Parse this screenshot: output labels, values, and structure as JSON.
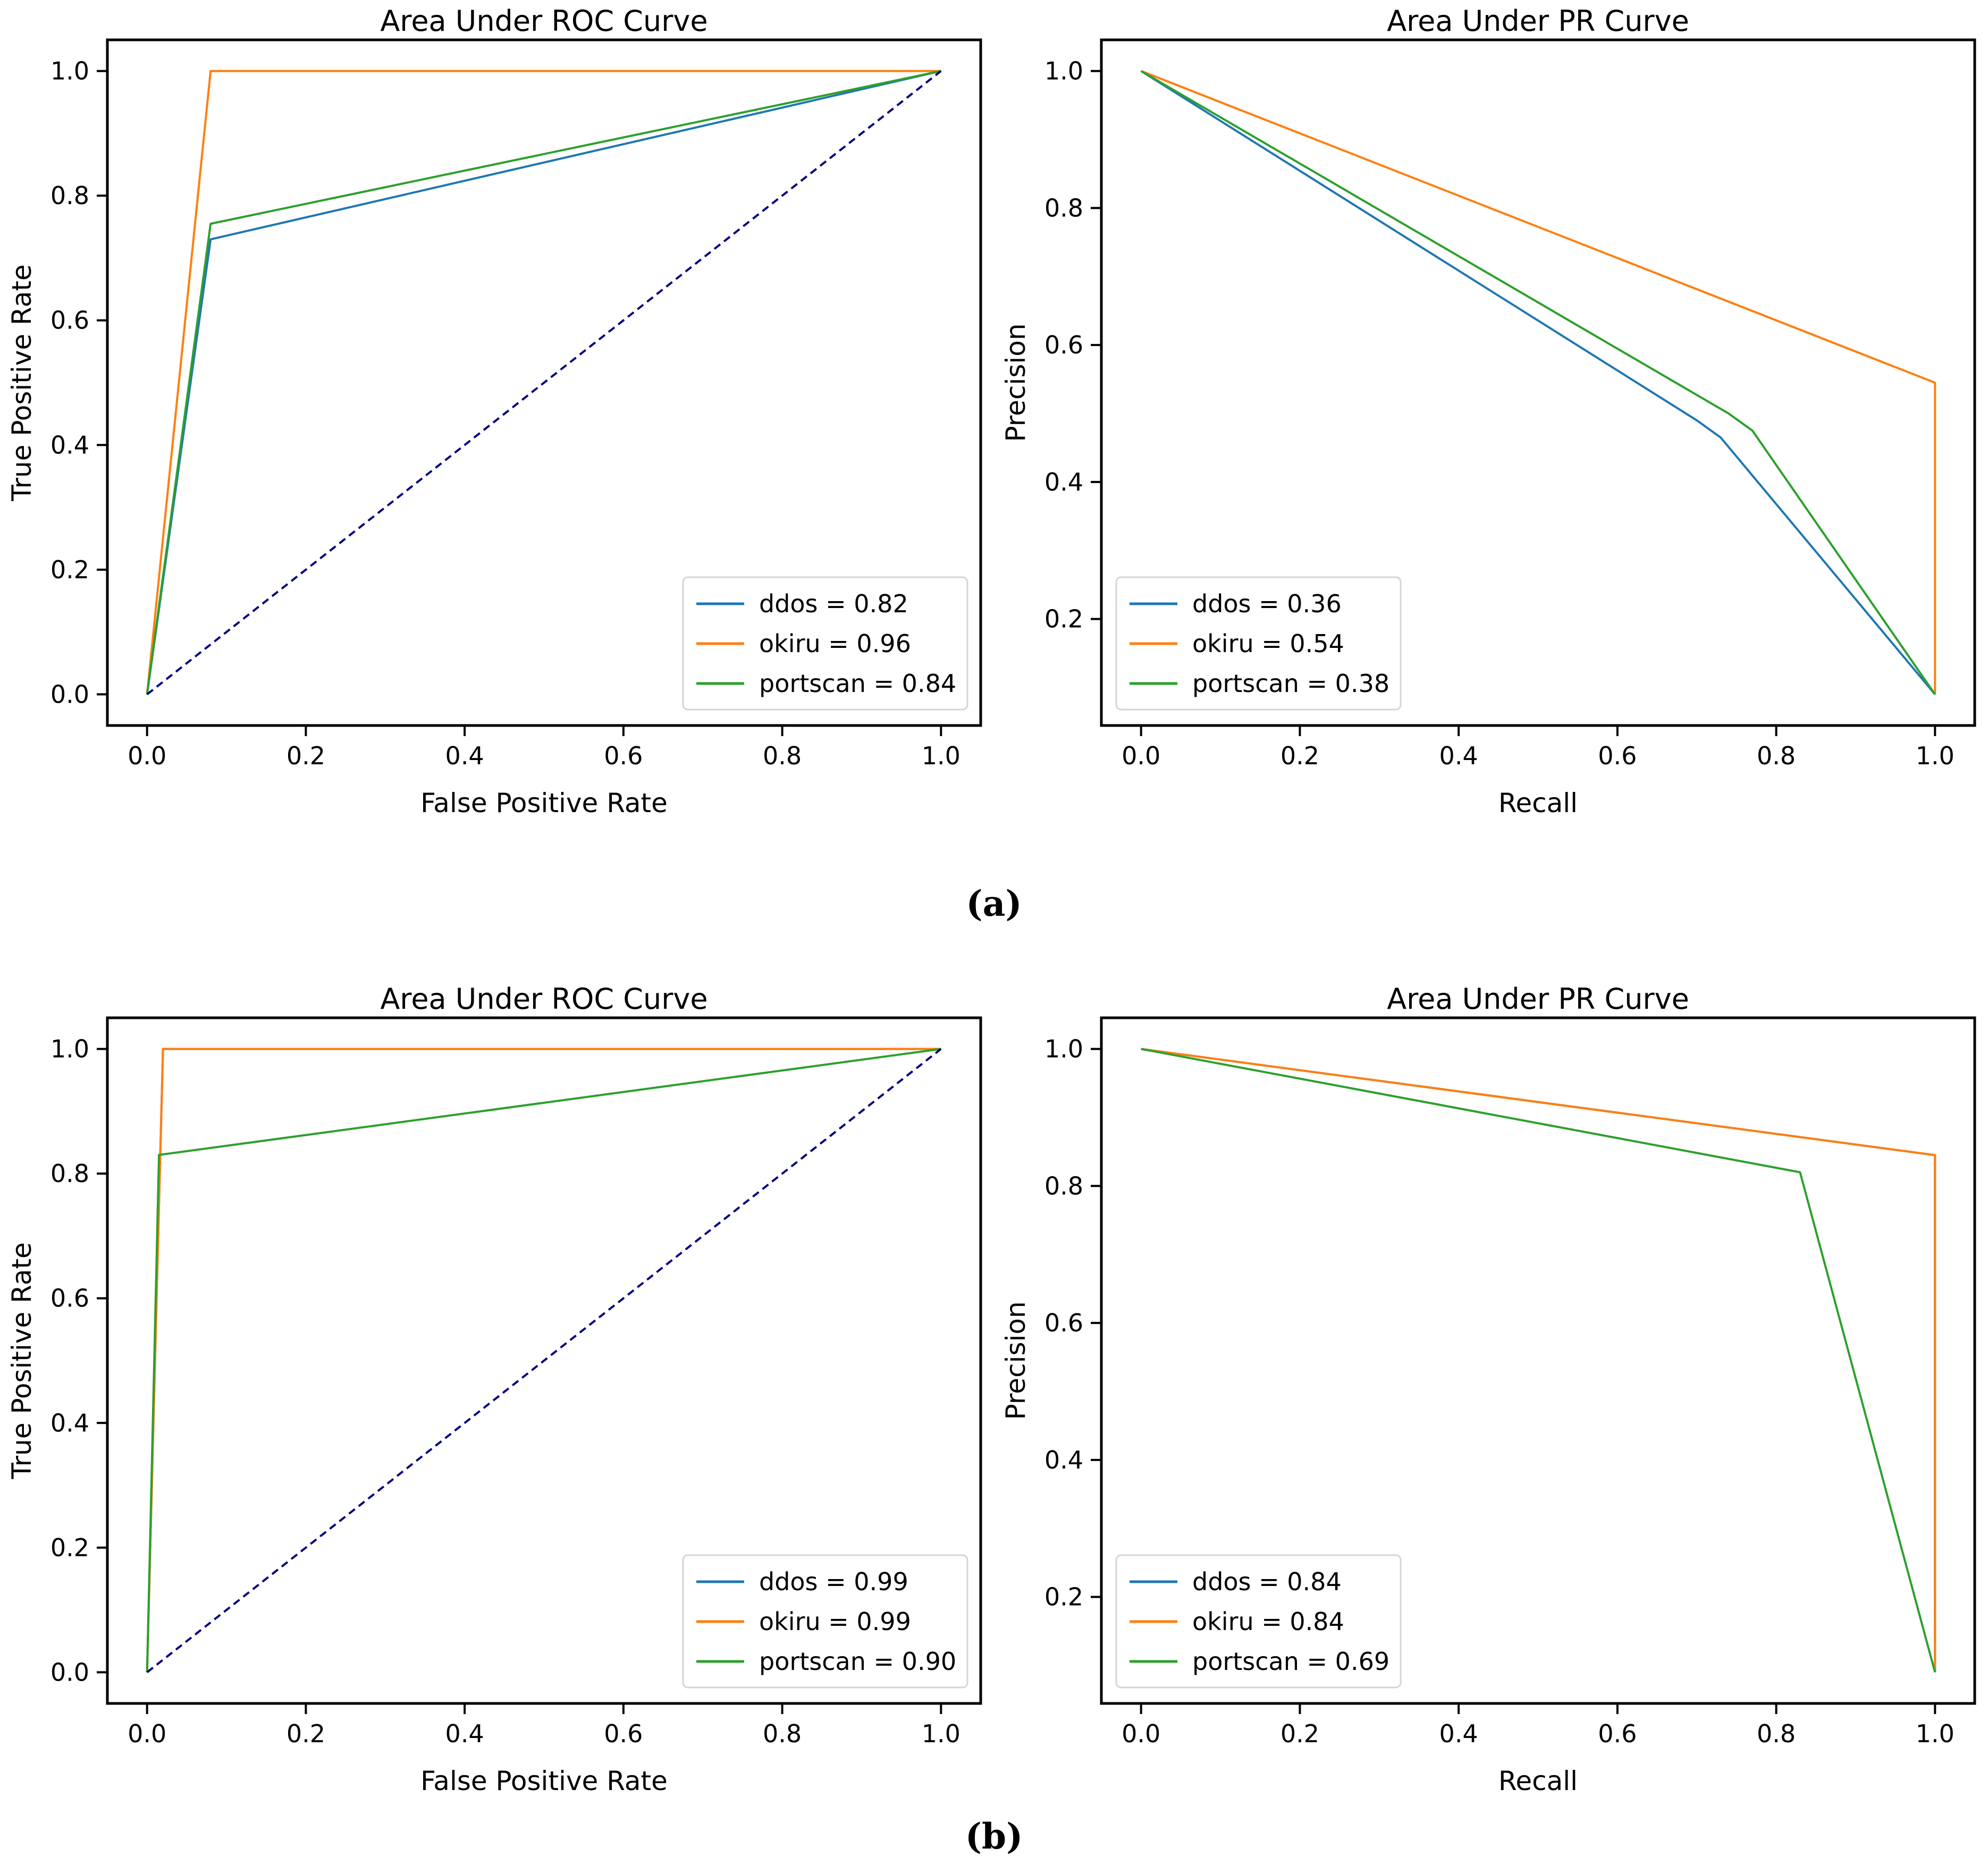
{
  "figure": {
    "panel_a_label": "(a)",
    "panel_b_label": "(b)",
    "colors": {
      "ddos": "#1f77b4",
      "okiru": "#ff7f0e",
      "portscan": "#2ca02c",
      "chance_diagonal": "#000080",
      "spine": "#000000",
      "legend_border": "#d5d5d5",
      "background": "#ffffff"
    }
  },
  "chart_data": [
    {
      "id": "a-roc",
      "panel": "a",
      "type": "line",
      "title": "Area Under ROC Curve",
      "xlabel": "False Positive Rate",
      "ylabel": "True Positive Rate",
      "xlim": [
        -0.05,
        1.05
      ],
      "ylim": [
        -0.05,
        1.05
      ],
      "xticks": [
        0.0,
        0.2,
        0.4,
        0.6,
        0.8,
        1.0
      ],
      "yticks": [
        0.0,
        0.2,
        0.4,
        0.6,
        0.8,
        1.0
      ],
      "grid": false,
      "legend_position": "lower-right",
      "series": [
        {
          "name": "ddos",
          "label": "ddos = 0.82",
          "auc": 0.82,
          "color": "#1f77b4",
          "style": "solid",
          "points": [
            [
              0,
              0
            ],
            [
              0.08,
              0.73
            ],
            [
              1,
              1
            ]
          ]
        },
        {
          "name": "okiru",
          "label": "okiru = 0.96",
          "auc": 0.96,
          "color": "#ff7f0e",
          "style": "solid",
          "points": [
            [
              0,
              0
            ],
            [
              0.08,
              1.0
            ],
            [
              1,
              1
            ]
          ]
        },
        {
          "name": "portscan",
          "label": "portscan = 0.84",
          "auc": 0.84,
          "color": "#2ca02c",
          "style": "solid",
          "points": [
            [
              0,
              0
            ],
            [
              0.08,
              0.755
            ],
            [
              1,
              1
            ]
          ]
        },
        {
          "name": "chance",
          "label": "",
          "color": "#000080",
          "style": "dashed",
          "in_legend": false,
          "points": [
            [
              0,
              0
            ],
            [
              1,
              1
            ]
          ]
        }
      ]
    },
    {
      "id": "a-pr",
      "panel": "a",
      "type": "line",
      "title": "Area Under PR Curve",
      "xlabel": "Recall",
      "ylabel": "Precision",
      "xlim": [
        -0.05,
        1.05
      ],
      "ylim": [
        0.0445,
        1.0455
      ],
      "xticks": [
        0.0,
        0.2,
        0.4,
        0.6,
        0.8,
        1.0
      ],
      "yticks": [
        0.2,
        0.4,
        0.6,
        0.8,
        1.0
      ],
      "grid": false,
      "legend_position": "lower-left",
      "series": [
        {
          "name": "ddos",
          "label": "ddos = 0.36",
          "auc": 0.36,
          "color": "#1f77b4",
          "style": "solid",
          "points": [
            [
              0,
              1.0
            ],
            [
              0.7,
              0.49
            ],
            [
              0.73,
              0.465
            ],
            [
              1.0,
              0.09
            ]
          ]
        },
        {
          "name": "okiru",
          "label": "okiru = 0.54",
          "auc": 0.54,
          "color": "#ff7f0e",
          "style": "solid",
          "points": [
            [
              0,
              1.0
            ],
            [
              1.0,
              0.545
            ],
            [
              1.0,
              0.09
            ]
          ]
        },
        {
          "name": "portscan",
          "label": "portscan = 0.38",
          "auc": 0.38,
          "color": "#2ca02c",
          "style": "solid",
          "points": [
            [
              0,
              1.0
            ],
            [
              0.74,
              0.5
            ],
            [
              0.77,
              0.475
            ],
            [
              1.0,
              0.09
            ]
          ]
        }
      ]
    },
    {
      "id": "b-roc",
      "panel": "b",
      "type": "line",
      "title": "Area Under ROC Curve",
      "xlabel": "False Positive Rate",
      "ylabel": "True Positive Rate",
      "xlim": [
        -0.05,
        1.05
      ],
      "ylim": [
        -0.05,
        1.05
      ],
      "xticks": [
        0.0,
        0.2,
        0.4,
        0.6,
        0.8,
        1.0
      ],
      "yticks": [
        0.0,
        0.2,
        0.4,
        0.6,
        0.8,
        1.0
      ],
      "grid": false,
      "legend_position": "lower-right",
      "series": [
        {
          "name": "ddos",
          "label": "ddos = 0.99",
          "auc": 0.99,
          "color": "#1f77b4",
          "style": "solid",
          "points": [
            [
              0,
              0
            ],
            [
              0.02,
              1.0
            ],
            [
              1,
              1
            ]
          ]
        },
        {
          "name": "okiru",
          "label": "okiru = 0.99",
          "auc": 0.99,
          "color": "#ff7f0e",
          "style": "solid",
          "points": [
            [
              0,
              0
            ],
            [
              0.02,
              1.0
            ],
            [
              1,
              1
            ]
          ]
        },
        {
          "name": "portscan",
          "label": "portscan = 0.90",
          "auc": 0.9,
          "color": "#2ca02c",
          "style": "solid",
          "points": [
            [
              0,
              0
            ],
            [
              0.015,
              0.83
            ],
            [
              1,
              1
            ]
          ]
        },
        {
          "name": "chance",
          "label": "",
          "color": "#000080",
          "style": "dashed",
          "in_legend": false,
          "points": [
            [
              0,
              0
            ],
            [
              1,
              1
            ]
          ]
        }
      ]
    },
    {
      "id": "b-pr",
      "panel": "b",
      "type": "line",
      "title": "Area Under PR Curve",
      "xlabel": "Recall",
      "ylabel": "Precision",
      "xlim": [
        -0.05,
        1.05
      ],
      "ylim": [
        0.0445,
        1.0455
      ],
      "xticks": [
        0.0,
        0.2,
        0.4,
        0.6,
        0.8,
        1.0
      ],
      "yticks": [
        0.2,
        0.4,
        0.6,
        0.8,
        1.0
      ],
      "grid": false,
      "legend_position": "lower-left",
      "series": [
        {
          "name": "ddos",
          "label": "ddos = 0.84",
          "auc": 0.84,
          "color": "#1f77b4",
          "style": "solid",
          "points": [
            [
              0,
              1.0
            ],
            [
              1.0,
              0.845
            ],
            [
              1.0,
              0.09
            ]
          ]
        },
        {
          "name": "okiru",
          "label": "okiru = 0.84",
          "auc": 0.84,
          "color": "#ff7f0e",
          "style": "solid",
          "points": [
            [
              0,
              1.0
            ],
            [
              1.0,
              0.845
            ],
            [
              1.0,
              0.09
            ]
          ]
        },
        {
          "name": "portscan",
          "label": "portscan = 0.69",
          "auc": 0.69,
          "color": "#2ca02c",
          "style": "solid",
          "points": [
            [
              0,
              1.0
            ],
            [
              0.83,
              0.82
            ],
            [
              1.0,
              0.09
            ]
          ]
        }
      ]
    }
  ]
}
